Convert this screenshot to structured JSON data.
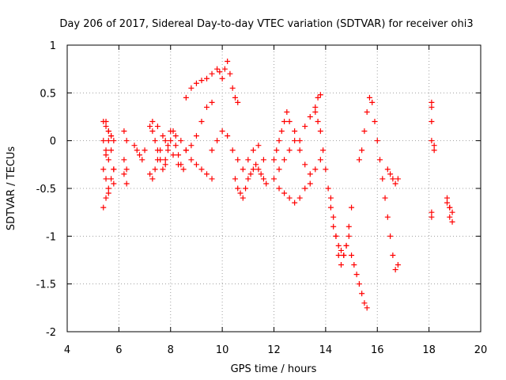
{
  "chart_data": {
    "type": "scatter",
    "marker": "plus",
    "title": "Day 206 of 2017, Sidereal Day-to-day VTEC variation (SDTVAR) for receiver ohi3",
    "xlabel": "GPS time / hours",
    "ylabel": "SDTVAR / TECUs",
    "xlim": [
      4,
      20
    ],
    "ylim": [
      -2,
      1
    ],
    "xticks": [
      4,
      6,
      8,
      10,
      12,
      14,
      16,
      18,
      20
    ],
    "yticks": [
      -2,
      -1.5,
      -1,
      -0.5,
      0,
      0.5,
      1
    ],
    "xtick_labels": [
      "4",
      "6",
      "8",
      "10",
      "12",
      "14",
      "16",
      "18",
      "20"
    ],
    "ytick_labels": [
      "-2",
      "-1.5",
      "-1",
      "-0.5",
      "0",
      "0.5",
      "1"
    ],
    "grid": true,
    "series": [
      {
        "name": "SDTVAR",
        "color": "#ff0000",
        "x": [
          5.4,
          5.5,
          5.6,
          5.7,
          5.8,
          5.4,
          5.5,
          5.6,
          5.7,
          5.4,
          5.5,
          5.6,
          5.8,
          5.5,
          5.6,
          5.8,
          5.4,
          5.5,
          5.6,
          5.7,
          5.8,
          5.5,
          5.6,
          5.7,
          6.2,
          6.3,
          6.2,
          6.3,
          6.3,
          6.2,
          6.6,
          6.7,
          6.8,
          6.9,
          7.0,
          7.2,
          7.3,
          7.4,
          7.5,
          7.6,
          7.7,
          7.8,
          7.2,
          7.3,
          7.4,
          7.5,
          7.6,
          7.8,
          8.0,
          8.2,
          8.4,
          8.6,
          7.3,
          7.5,
          7.7,
          7.9,
          8.1,
          8.3,
          8.5,
          7.8,
          7.9,
          8.0,
          8.1,
          8.2,
          8.3,
          8.4,
          8.6,
          8.8,
          9.0,
          9.2,
          9.4,
          9.6,
          9.8,
          9.9,
          10.0,
          10.1,
          10.2,
          10.3,
          10.4,
          10.5,
          10.6,
          8.6,
          8.8,
          9.0,
          9.2,
          9.4,
          9.6,
          8.8,
          9.0,
          9.2,
          9.4,
          9.6,
          9.6,
          9.8,
          10.0,
          10.2,
          10.4,
          10.6,
          10.8,
          11.0,
          11.2,
          11.4,
          11.6,
          10.5,
          10.6,
          10.7,
          10.8,
          10.9,
          11.0,
          11.1,
          11.2,
          11.3,
          11.4,
          11.5,
          11.6,
          11.7,
          12.0,
          12.1,
          12.2,
          12.3,
          12.4,
          12.5,
          12.6,
          12.8,
          13.0,
          13.2,
          13.4,
          13.6,
          13.7,
          13.8,
          12.0,
          12.2,
          12.4,
          12.6,
          12.8,
          13.0,
          13.2,
          13.4,
          13.6,
          13.8,
          12.2,
          12.4,
          12.6,
          12.8,
          13.0,
          13.2,
          13.4,
          13.6,
          13.7,
          13.8,
          13.9,
          14.0,
          14.1,
          14.2,
          14.3,
          14.4,
          14.5,
          14.6,
          14.7,
          14.8,
          14.9,
          15.0,
          14.2,
          14.3,
          14.4,
          14.5,
          14.6,
          14.7,
          14.8,
          14.9,
          15.0,
          15.1,
          15.2,
          15.3,
          15.4,
          15.5,
          15.6,
          15.3,
          15.4,
          15.5,
          15.6,
          15.7,
          15.8,
          15.9,
          16.0,
          16.1,
          16.2,
          16.3,
          16.4,
          16.5,
          16.6,
          16.7,
          16.8,
          16.4,
          16.5,
          16.6,
          16.7,
          16.8,
          18.1,
          18.1,
          18.1,
          18.1,
          18.2,
          18.2,
          18.1,
          18.1,
          18.7,
          18.8,
          18.8,
          18.9,
          18.7,
          18.8,
          18.9
        ],
        "y": [
          -0.7,
          -0.6,
          -0.5,
          -0.4,
          -0.3,
          0.2,
          0.15,
          0.1,
          0.05,
          0.0,
          -0.1,
          -0.2,
          -0.3,
          -0.4,
          -0.55,
          -0.45,
          -0.3,
          -0.15,
          0.0,
          0.05,
          0.0,
          0.2,
          0.1,
          -0.1,
          0.1,
          0.0,
          -0.2,
          -0.3,
          -0.45,
          -0.35,
          -0.05,
          -0.1,
          -0.15,
          -0.2,
          -0.1,
          0.15,
          0.1,
          0.0,
          -0.1,
          -0.2,
          -0.3,
          -0.25,
          -0.35,
          -0.4,
          -0.3,
          -0.2,
          -0.1,
          0.0,
          0.1,
          0.05,
          0.0,
          -0.1,
          0.2,
          0.15,
          0.05,
          -0.05,
          -0.15,
          -0.25,
          -0.3,
          -0.2,
          -0.1,
          0.0,
          0.1,
          -0.05,
          -0.15,
          -0.25,
          0.45,
          0.55,
          0.6,
          0.63,
          0.65,
          0.7,
          0.75,
          0.72,
          0.65,
          0.75,
          0.83,
          0.7,
          0.55,
          0.45,
          0.4,
          -0.1,
          -0.05,
          0.05,
          0.2,
          0.35,
          0.4,
          -0.2,
          -0.25,
          -0.3,
          -0.35,
          -0.4,
          -0.1,
          0.0,
          0.1,
          0.05,
          -0.1,
          -0.2,
          -0.3,
          -0.2,
          -0.1,
          -0.05,
          -0.2,
          -0.4,
          -0.5,
          -0.55,
          -0.6,
          -0.5,
          -0.4,
          -0.35,
          -0.3,
          -0.25,
          -0.3,
          -0.35,
          -0.4,
          -0.45,
          -0.2,
          -0.1,
          0.0,
          0.1,
          0.2,
          0.3,
          0.2,
          0.1,
          0.0,
          0.15,
          0.25,
          0.35,
          0.45,
          0.48,
          -0.4,
          -0.3,
          -0.2,
          -0.1,
          0.0,
          -0.1,
          -0.25,
          -0.35,
          -0.3,
          -0.2,
          -0.5,
          -0.55,
          -0.6,
          -0.65,
          -0.6,
          -0.5,
          -0.45,
          0.3,
          0.2,
          0.1,
          -0.1,
          -0.3,
          -0.5,
          -0.7,
          -0.9,
          -1.0,
          -1.1,
          -1.15,
          -1.2,
          -1.1,
          -0.9,
          -0.7,
          -0.6,
          -0.8,
          -1.0,
          -1.2,
          -1.3,
          -1.2,
          -1.1,
          -1.0,
          -1.2,
          -1.3,
          -1.4,
          -1.5,
          -1.6,
          -1.7,
          -1.75,
          -0.2,
          -0.1,
          0.1,
          0.3,
          0.45,
          0.4,
          0.2,
          0.0,
          -0.2,
          -0.4,
          -0.6,
          -0.8,
          -1.0,
          -1.2,
          -1.35,
          -1.3,
          -0.3,
          -0.35,
          -0.4,
          -0.45,
          -0.4,
          0.4,
          0.35,
          0.2,
          0.0,
          -0.05,
          -0.1,
          -0.75,
          -0.8,
          -0.6,
          -0.7,
          -0.8,
          -0.85,
          -0.65,
          -0.7,
          -0.75
        ]
      }
    ]
  }
}
